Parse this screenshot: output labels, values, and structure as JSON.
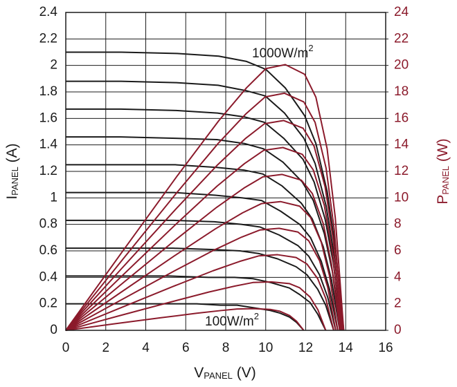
{
  "chart_data": {
    "type": "line",
    "xlabel": {
      "main": "V",
      "sub": "PANEL",
      "unit": " (V)"
    },
    "ylabel": {
      "main": "I",
      "sub": "PANEL",
      "unit": " (A)"
    },
    "y2label": {
      "main": "P",
      "sub": "PANEL",
      "unit": " (W)"
    },
    "annotations": [
      {
        "text": "1000W/m",
        "sup": "2"
      },
      {
        "text": "100W/m",
        "sup": "2"
      }
    ],
    "xlim": [
      0,
      16
    ],
    "xticks": [
      0,
      2,
      4,
      6,
      8,
      10,
      12,
      14,
      16
    ],
    "ylim": [
      0,
      2.4
    ],
    "yticks": [
      0,
      0.2,
      0.4,
      0.6,
      0.8,
      1,
      1.2,
      1.4,
      1.6,
      1.8,
      2,
      2.2,
      2.4
    ],
    "y2lim": [
      0,
      24
    ],
    "y2ticks": [
      0,
      2,
      4,
      6,
      8,
      10,
      12,
      14,
      16,
      18,
      20,
      22,
      24
    ],
    "y2color": "#8b1a2b",
    "grid": true,
    "series": [
      {
        "color": "#1a1a1a",
        "axis": "y",
        "x": [
          0,
          2.38,
          4.76,
          6.55,
          7.74,
          8.57,
          9.4,
          10.23,
          10.71,
          11.19,
          11.54,
          11.9
        ],
        "values": [
          0.2,
          0.2,
          0.2,
          0.2,
          0.19,
          0.19,
          0.17,
          0.15,
          0.13,
          0.1,
          0.06,
          0
        ]
      },
      {
        "color": "#1a1a1a",
        "axis": "y",
        "x": [
          0,
          2.6,
          5.2,
          7.15,
          8.45,
          9.36,
          10.27,
          11.18,
          11.7,
          12.22,
          12.61,
          13
        ],
        "values": [
          0.41,
          0.41,
          0.41,
          0.4,
          0.4,
          0.39,
          0.36,
          0.32,
          0.27,
          0.21,
          0.12,
          0
        ]
      },
      {
        "color": "#1a1a1a",
        "axis": "y",
        "x": [
          0,
          2.68,
          5.36,
          7.37,
          8.71,
          9.65,
          10.59,
          11.52,
          12.06,
          12.6,
          13,
          13.4
        ],
        "values": [
          0.62,
          0.62,
          0.62,
          0.61,
          0.6,
          0.58,
          0.54,
          0.48,
          0.42,
          0.31,
          0.19,
          0
        ]
      },
      {
        "color": "#1a1a1a",
        "axis": "y",
        "x": [
          0,
          2.7,
          5.4,
          7.43,
          8.78,
          9.72,
          10.67,
          11.61,
          12.15,
          12.69,
          13.1,
          13.5
        ],
        "values": [
          0.83,
          0.83,
          0.83,
          0.82,
          0.8,
          0.78,
          0.72,
          0.64,
          0.56,
          0.42,
          0.25,
          0
        ]
      },
      {
        "color": "#1a1a1a",
        "axis": "y",
        "x": [
          0,
          2.72,
          5.44,
          7.48,
          8.84,
          9.79,
          10.74,
          11.7,
          12.24,
          12.78,
          13.19,
          13.6
        ],
        "values": [
          1.04,
          1.04,
          1.04,
          1.02,
          1,
          0.98,
          0.9,
          0.8,
          0.7,
          0.52,
          0.31,
          0
        ]
      },
      {
        "color": "#1a1a1a",
        "axis": "y",
        "x": [
          0,
          2.74,
          5.48,
          7.54,
          8.91,
          9.86,
          10.82,
          11.78,
          12.33,
          12.88,
          13.29,
          13.7
        ],
        "values": [
          1.25,
          1.25,
          1.25,
          1.23,
          1.21,
          1.18,
          1.09,
          0.96,
          0.84,
          0.63,
          0.38,
          0
        ]
      },
      {
        "color": "#1a1a1a",
        "axis": "y",
        "x": [
          0,
          2.75,
          5.5,
          7.56,
          8.94,
          9.9,
          10.86,
          11.83,
          12.38,
          12.93,
          13.34,
          13.75
        ],
        "values": [
          1.46,
          1.46,
          1.45,
          1.44,
          1.41,
          1.37,
          1.27,
          1.12,
          0.98,
          0.73,
          0.44,
          0
        ]
      },
      {
        "color": "#1a1a1a",
        "axis": "y",
        "x": [
          0,
          2.76,
          5.52,
          7.59,
          8.97,
          9.94,
          10.9,
          11.87,
          12.42,
          12.97,
          13.39,
          13.8
        ],
        "values": [
          1.67,
          1.67,
          1.66,
          1.64,
          1.61,
          1.57,
          1.45,
          1.29,
          1.12,
          0.84,
          0.5,
          0
        ]
      },
      {
        "color": "#1a1a1a",
        "axis": "y",
        "x": [
          0,
          2.77,
          5.54,
          7.62,
          9,
          9.97,
          10.94,
          11.91,
          12.47,
          13.02,
          13.43,
          13.85
        ],
        "values": [
          1.88,
          1.88,
          1.87,
          1.85,
          1.81,
          1.77,
          1.64,
          1.45,
          1.26,
          0.94,
          0.56,
          0
        ]
      },
      {
        "color": "#1a1a1a",
        "axis": "y",
        "x": [
          0,
          2.78,
          5.56,
          7.65,
          9.04,
          10.01,
          10.98,
          11.95,
          12.51,
          13.07,
          13.48,
          13.9
        ],
        "values": [
          2.1,
          2.1,
          2.09,
          2.07,
          2.03,
          1.97,
          1.83,
          1.62,
          1.41,
          1.05,
          0.63,
          0
        ]
      },
      {
        "color": "#8b1a2b",
        "axis": "y2",
        "x": [
          0,
          2.38,
          4.76,
          6.55,
          7.74,
          8.57,
          9.4,
          10.23,
          10.71,
          11.19,
          11.54,
          11.9
        ],
        "values": [
          0,
          0.48,
          0.95,
          1.29,
          1.49,
          1.61,
          1.64,
          1.58,
          1.44,
          1.12,
          0.69,
          0
        ]
      },
      {
        "color": "#8b1a2b",
        "axis": "y2",
        "x": [
          0,
          2.6,
          5.2,
          7.15,
          8.45,
          9.36,
          10.27,
          11.18,
          11.7,
          12.22,
          12.61,
          13
        ],
        "values": [
          0,
          1.07,
          2.12,
          2.89,
          3.34,
          3.61,
          3.66,
          3.53,
          3.21,
          2.51,
          1.55,
          0
        ]
      },
      {
        "color": "#8b1a2b",
        "axis": "y2",
        "x": [
          0,
          2.68,
          5.36,
          7.37,
          8.71,
          9.65,
          10.59,
          11.52,
          12.06,
          12.6,
          13,
          13.4
        ],
        "values": [
          0,
          1.66,
          3.31,
          4.5,
          5.21,
          5.62,
          5.71,
          5.5,
          5.01,
          3.9,
          2.42,
          0
        ]
      },
      {
        "color": "#8b1a2b",
        "axis": "y2",
        "x": [
          0,
          2.7,
          5.4,
          7.43,
          8.78,
          9.72,
          10.67,
          11.61,
          12.15,
          12.69,
          13.1,
          13.5
        ],
        "values": [
          0,
          2.24,
          4.46,
          6.07,
          7.03,
          7.58,
          7.7,
          7.42,
          6.76,
          5.27,
          3.26,
          0
        ]
      },
      {
        "color": "#8b1a2b",
        "axis": "y2",
        "x": [
          0,
          2.72,
          5.44,
          7.48,
          8.84,
          9.79,
          10.74,
          11.7,
          12.24,
          12.78,
          13.19,
          13.6
        ],
        "values": [
          0,
          2.83,
          5.63,
          7.66,
          8.87,
          9.57,
          9.72,
          9.37,
          8.53,
          6.65,
          4.12,
          0
        ]
      },
      {
        "color": "#8b1a2b",
        "axis": "y2",
        "x": [
          0,
          2.74,
          5.48,
          7.54,
          8.91,
          9.86,
          10.82,
          11.78,
          12.33,
          12.88,
          13.29,
          13.7
        ],
        "values": [
          0,
          3.43,
          6.82,
          9.28,
          10.74,
          11.59,
          11.77,
          11.34,
          10.33,
          8.05,
          4.98,
          0
        ]
      },
      {
        "color": "#8b1a2b",
        "axis": "y2",
        "x": [
          0,
          2.75,
          5.5,
          7.56,
          8.94,
          9.9,
          10.86,
          11.83,
          12.38,
          12.93,
          13.34,
          13.75
        ],
        "values": [
          0,
          4.02,
          8,
          10.88,
          12.59,
          13.59,
          13.8,
          13.29,
          12.11,
          9.44,
          5.84,
          0
        ]
      },
      {
        "color": "#8b1a2b",
        "axis": "y2",
        "x": [
          0,
          2.76,
          5.52,
          7.59,
          8.97,
          9.94,
          10.9,
          11.87,
          12.42,
          12.97,
          13.39,
          13.8
        ],
        "values": [
          0,
          4.61,
          9.18,
          12.49,
          14.46,
          15.6,
          15.84,
          15.26,
          13.9,
          10.83,
          6.71,
          0
        ]
      },
      {
        "color": "#8b1a2b",
        "axis": "y2",
        "x": [
          0,
          2.77,
          5.54,
          7.62,
          9,
          9.97,
          10.94,
          11.91,
          12.47,
          13.02,
          13.43,
          13.85
        ],
        "values": [
          0,
          5.21,
          10.37,
          14.11,
          16.33,
          17.62,
          17.9,
          17.24,
          15.7,
          12.24,
          7.58,
          0
        ]
      },
      {
        "color": "#8b1a2b",
        "axis": "y2",
        "x": [
          0,
          2.78,
          5.56,
          7.65,
          9.04,
          10.01,
          10.98,
          11.95,
          12.51,
          13.07,
          13.48,
          13.9
        ],
        "values": [
          0,
          5.84,
          11.63,
          15.82,
          18.31,
          19.76,
          20.06,
          19.33,
          17.6,
          13.72,
          8.49,
          0
        ]
      }
    ]
  }
}
